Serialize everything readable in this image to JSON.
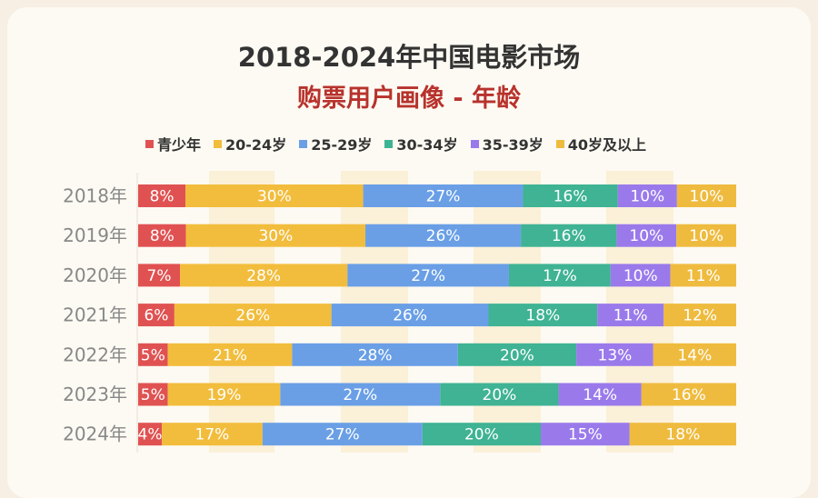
{
  "title": "2018-2024年中国电影市场",
  "subtitle": "购票用户画像 - 年龄",
  "chart_data": {
    "type": "bar",
    "orientation": "horizontal",
    "stacked": true,
    "normalized": true,
    "title": "2018-2024年中国电影市场 购票用户画像 - 年龄",
    "categories": [
      "2018年",
      "2019年",
      "2020年",
      "2021年",
      "2022年",
      "2023年",
      "2024年"
    ],
    "series": [
      {
        "name": "青少年",
        "color": "#e05252",
        "values": [
          8,
          8,
          7,
          6,
          5,
          5,
          4
        ]
      },
      {
        "name": "20-24岁",
        "color": "#f2bd3c",
        "values": [
          30,
          30,
          28,
          26,
          21,
          19,
          17
        ]
      },
      {
        "name": "25-29岁",
        "color": "#6a9fe6",
        "values": [
          27,
          26,
          27,
          26,
          28,
          27,
          27
        ]
      },
      {
        "name": "30-34岁",
        "color": "#3fb394",
        "values": [
          16,
          16,
          17,
          18,
          20,
          20,
          20
        ]
      },
      {
        "name": "35-39岁",
        "color": "#9a7aeb",
        "values": [
          10,
          10,
          10,
          11,
          13,
          14,
          15
        ]
      },
      {
        "name": "40岁及以上",
        "color": "#efbb3e",
        "values": [
          10,
          10,
          11,
          12,
          14,
          16,
          18
        ]
      }
    ],
    "value_suffix": "%",
    "legend_position": "top"
  }
}
